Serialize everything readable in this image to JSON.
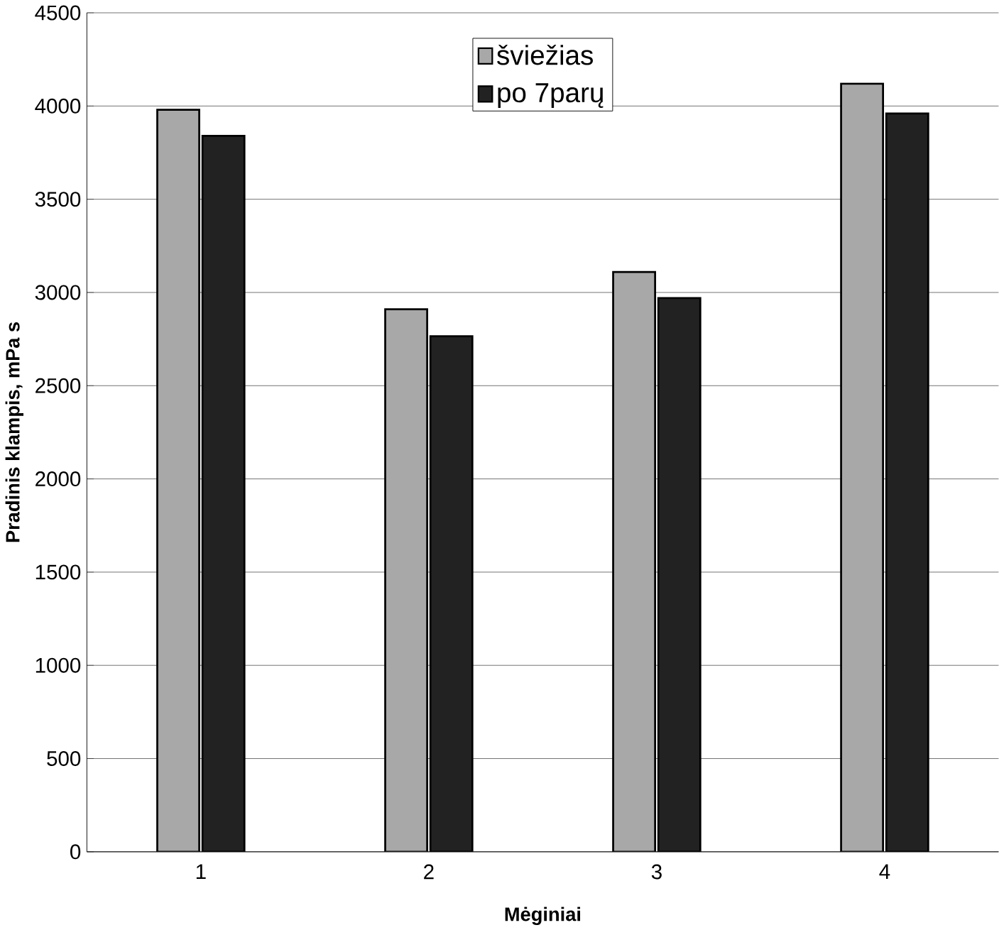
{
  "chart_data": {
    "type": "bar",
    "xlabel": "Mėginiai",
    "ylabel": "Pradinis klampis, mPa s",
    "categories": [
      "1",
      "2",
      "3",
      "4"
    ],
    "series": [
      {
        "name": "šviežias",
        "color": "#a8a8a8",
        "values": [
          3980,
          2910,
          3110,
          4120
        ]
      },
      {
        "name": "po 7parų",
        "color": "#222222",
        "values": [
          3840,
          2765,
          2970,
          3960
        ]
      }
    ],
    "ylim": [
      0,
      4500
    ],
    "yticks": [
      0,
      500,
      1000,
      1500,
      2000,
      2500,
      3000,
      3500,
      4000,
      4500
    ],
    "grid": "y",
    "legend": "top"
  }
}
